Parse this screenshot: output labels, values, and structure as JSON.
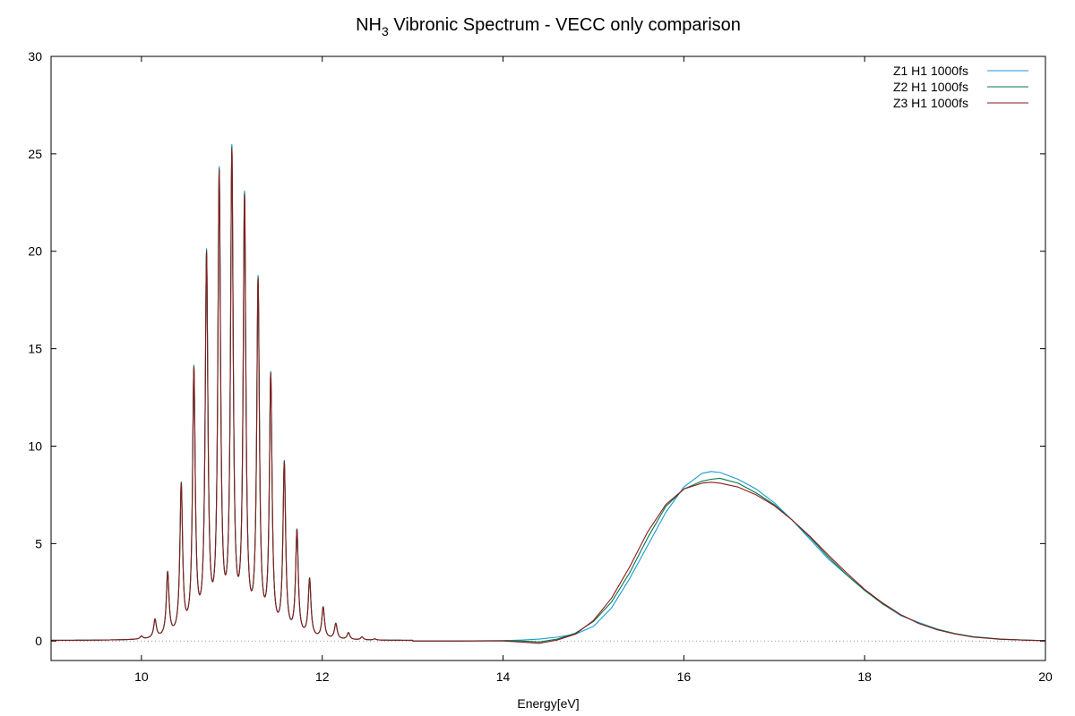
{
  "chart_data": {
    "type": "line",
    "title": "NH3 Vibronic Spectrum - VECC only comparison",
    "title_parts": {
      "pre": "NH",
      "sub": "3",
      "post": " Vibronic Spectrum - VECC only comparison"
    },
    "xlabel": "Energy[eV]",
    "ylabel": "",
    "xlim": [
      9,
      20
    ],
    "ylim": [
      -1,
      30
    ],
    "xticks": [
      10,
      12,
      14,
      16,
      18,
      20
    ],
    "yticks": [
      0,
      5,
      10,
      15,
      20,
      25,
      30
    ],
    "zero_line": true,
    "legend_position": "top-right",
    "band1": {
      "x_range": [
        9.5,
        13.2
      ],
      "linewidth": 0.018,
      "baseline": 0.02,
      "peaks": [
        [
          10.0,
          0.15
        ],
        [
          10.15,
          0.95
        ],
        [
          10.29,
          3.3
        ],
        [
          10.44,
          7.7
        ],
        [
          10.58,
          13.5
        ],
        [
          10.72,
          19.3
        ],
        [
          10.86,
          23.4
        ],
        [
          11.0,
          24.5
        ],
        [
          11.14,
          22.2
        ],
        [
          11.29,
          18.0
        ],
        [
          11.43,
          13.2
        ],
        [
          11.58,
          8.8
        ],
        [
          11.72,
          5.4
        ],
        [
          11.86,
          3.0
        ],
        [
          12.01,
          1.6
        ],
        [
          12.15,
          0.8
        ],
        [
          12.29,
          0.35
        ],
        [
          12.44,
          0.15
        ],
        [
          12.58,
          0.06
        ]
      ]
    },
    "series": [
      {
        "name": "Z1 H1 1000fs",
        "color": "#1a9ad6",
        "x": [
          13.0,
          13.5,
          14.0,
          14.2,
          14.4,
          14.6,
          14.8,
          15.0,
          15.2,
          15.4,
          15.6,
          15.8,
          16.0,
          16.2,
          16.3,
          16.4,
          16.6,
          16.8,
          17.0,
          17.2,
          17.4,
          17.6,
          17.8,
          18.0,
          18.2,
          18.4,
          18.6,
          18.8,
          19.0,
          19.2,
          19.5,
          19.8,
          20.0
        ],
        "y": [
          0.0,
          0.0,
          0.02,
          0.05,
          0.1,
          0.2,
          0.35,
          0.75,
          1.7,
          3.2,
          4.9,
          6.6,
          7.9,
          8.6,
          8.7,
          8.65,
          8.3,
          7.8,
          7.1,
          6.2,
          5.2,
          4.2,
          3.4,
          2.6,
          1.9,
          1.3,
          0.95,
          0.62,
          0.38,
          0.22,
          0.1,
          0.04,
          0.02
        ]
      },
      {
        "name": "Z2 H1 1000fs",
        "color": "#00784a",
        "x": [
          13.0,
          13.5,
          14.0,
          14.2,
          14.4,
          14.6,
          14.8,
          15.0,
          15.2,
          15.4,
          15.6,
          15.8,
          16.0,
          16.2,
          16.3,
          16.4,
          16.6,
          16.8,
          17.0,
          17.2,
          17.4,
          17.6,
          17.8,
          18.0,
          18.2,
          18.4,
          18.6,
          18.8,
          19.0,
          19.2,
          19.5,
          19.8,
          20.0
        ],
        "y": [
          0.0,
          0.0,
          0.02,
          0.0,
          -0.05,
          0.1,
          0.4,
          1.0,
          2.0,
          3.5,
          5.3,
          6.9,
          7.8,
          8.2,
          8.3,
          8.35,
          8.1,
          7.6,
          7.0,
          6.2,
          5.3,
          4.3,
          3.4,
          2.6,
          1.9,
          1.35,
          0.9,
          0.6,
          0.38,
          0.22,
          0.1,
          0.04,
          0.02
        ]
      },
      {
        "name": "Z3 H1 1000fs",
        "color": "#8b1a1a",
        "x": [
          13.0,
          13.5,
          14.0,
          14.2,
          14.4,
          14.6,
          14.8,
          15.0,
          15.2,
          15.4,
          15.6,
          15.8,
          16.0,
          16.2,
          16.3,
          16.4,
          16.6,
          16.8,
          17.0,
          17.2,
          17.4,
          17.6,
          17.8,
          18.0,
          18.2,
          18.4,
          18.6,
          18.8,
          19.0,
          19.2,
          19.5,
          19.8,
          20.0
        ],
        "y": [
          0.0,
          0.0,
          0.0,
          -0.05,
          -0.12,
          0.05,
          0.35,
          1.05,
          2.2,
          3.8,
          5.6,
          7.0,
          7.8,
          8.1,
          8.15,
          8.1,
          7.9,
          7.5,
          6.95,
          6.2,
          5.35,
          4.4,
          3.5,
          2.65,
          1.95,
          1.35,
          0.9,
          0.58,
          0.36,
          0.2,
          0.09,
          0.04,
          0.02
        ]
      }
    ]
  }
}
